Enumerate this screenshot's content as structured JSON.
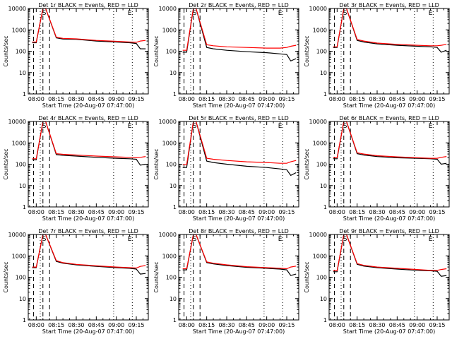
{
  "figure": {
    "xlabel": "Start Time (20-Aug-07 07:47:00)",
    "ylabel": "Counts/sec",
    "x_ticks": [
      "08:00",
      "08:15",
      "08:30",
      "08:45",
      "09:00",
      "09:15"
    ],
    "y_ticks": [
      "1",
      "10",
      "100",
      "1000",
      "10000"
    ],
    "marker_S": "S",
    "marker_E": "E"
  },
  "chart_data": [
    {
      "type": "line",
      "title": "Det 1r BLACK = Events, RED = LLD",
      "y_scale": "log",
      "ylim": [
        1,
        10000
      ],
      "x": [
        "07:57",
        "08:00",
        "08:05",
        "08:07",
        "08:15",
        "08:20",
        "08:30",
        "08:45",
        "09:00",
        "09:10",
        "09:15",
        "09:18",
        "09:22"
      ],
      "series": [
        {
          "name": "Events",
          "color": "#000000",
          "values": [
            250,
            250,
            10000,
            10000,
            420,
            370,
            360,
            300,
            270,
            250,
            230,
            130,
            130
          ]
        },
        {
          "name": "LLD",
          "color": "#ff0000",
          "values": [
            270,
            270,
            10000,
            10000,
            450,
            400,
            380,
            320,
            290,
            270,
            260,
            300,
            320
          ]
        }
      ]
    },
    {
      "type": "line",
      "title": "Det 2r BLACK = Events, RED = LLD",
      "y_scale": "log",
      "ylim": [
        1,
        10000
      ],
      "x": [
        "07:57",
        "08:00",
        "08:05",
        "08:07",
        "08:15",
        "08:20",
        "08:30",
        "08:45",
        "09:00",
        "09:10",
        "09:15",
        "09:18",
        "09:22"
      ],
      "series": [
        {
          "name": "Events",
          "color": "#000000",
          "values": [
            90,
            90,
            10000,
            10000,
            150,
            130,
            110,
            95,
            85,
            75,
            70,
            35,
            45
          ]
        },
        {
          "name": "LLD",
          "color": "#ff0000",
          "values": [
            110,
            110,
            10000,
            10000,
            200,
            180,
            160,
            150,
            140,
            140,
            150,
            170,
            190
          ]
        }
      ]
    },
    {
      "type": "line",
      "title": "Det 3r BLACK = Events, RED = LLD",
      "y_scale": "log",
      "ylim": [
        1,
        10000
      ],
      "x": [
        "07:57",
        "08:00",
        "08:05",
        "08:07",
        "08:15",
        "08:20",
        "08:30",
        "08:45",
        "09:00",
        "09:10",
        "09:15",
        "09:18",
        "09:22"
      ],
      "series": [
        {
          "name": "Events",
          "color": "#000000",
          "values": [
            150,
            150,
            10000,
            10000,
            320,
            270,
            220,
            190,
            170,
            160,
            150,
            90,
            110
          ]
        },
        {
          "name": "LLD",
          "color": "#ff0000",
          "values": [
            160,
            160,
            10000,
            10000,
            350,
            300,
            240,
            210,
            190,
            180,
            180,
            190,
            210
          ]
        }
      ]
    },
    {
      "type": "line",
      "title": "Det 4r BLACK = Events, RED = LLD",
      "y_scale": "log",
      "ylim": [
        1,
        10000
      ],
      "x": [
        "07:57",
        "08:00",
        "08:05",
        "08:07",
        "08:15",
        "08:20",
        "08:30",
        "08:45",
        "09:00",
        "09:10",
        "09:15",
        "09:18",
        "09:22"
      ],
      "series": [
        {
          "name": "Events",
          "color": "#000000",
          "values": [
            160,
            160,
            10000,
            10000,
            280,
            260,
            240,
            210,
            190,
            180,
            170,
            90,
            100
          ]
        },
        {
          "name": "LLD",
          "color": "#ff0000",
          "values": [
            180,
            180,
            10000,
            10000,
            310,
            290,
            270,
            240,
            220,
            210,
            200,
            210,
            230
          ]
        }
      ]
    },
    {
      "type": "line",
      "title": "Det 5r BLACK = Events, RED = LLD",
      "y_scale": "log",
      "ylim": [
        1,
        10000
      ],
      "x": [
        "07:57",
        "08:00",
        "08:05",
        "08:07",
        "08:15",
        "08:20",
        "08:30",
        "08:45",
        "09:00",
        "09:10",
        "09:15",
        "09:18",
        "09:22"
      ],
      "series": [
        {
          "name": "Events",
          "color": "#000000",
          "values": [
            70,
            70,
            10000,
            10000,
            140,
            120,
            100,
            80,
            70,
            60,
            55,
            30,
            40
          ]
        },
        {
          "name": "LLD",
          "color": "#ff0000",
          "values": [
            95,
            95,
            10000,
            10000,
            190,
            170,
            150,
            130,
            120,
            110,
            110,
            130,
            150
          ]
        }
      ]
    },
    {
      "type": "line",
      "title": "Det 6r BLACK = Events, RED = LLD",
      "y_scale": "log",
      "ylim": [
        1,
        10000
      ],
      "x": [
        "07:57",
        "08:00",
        "08:05",
        "08:07",
        "08:15",
        "08:20",
        "08:30",
        "08:45",
        "09:00",
        "09:10",
        "09:15",
        "09:18",
        "09:22"
      ],
      "series": [
        {
          "name": "Events",
          "color": "#000000",
          "values": [
            180,
            180,
            10000,
            10000,
            310,
            270,
            230,
            200,
            190,
            180,
            170,
            100,
            110
          ]
        },
        {
          "name": "LLD",
          "color": "#ff0000",
          "values": [
            200,
            200,
            10000,
            10000,
            340,
            300,
            250,
            220,
            200,
            190,
            190,
            210,
            230
          ]
        }
      ]
    },
    {
      "type": "line",
      "title": "Det 7r BLACK = Events, RED = LLD",
      "y_scale": "log",
      "ylim": [
        1,
        10000
      ],
      "x": [
        "07:57",
        "08:00",
        "08:05",
        "08:07",
        "08:15",
        "08:20",
        "08:30",
        "08:45",
        "09:00",
        "09:10",
        "09:15",
        "09:18",
        "09:22"
      ],
      "series": [
        {
          "name": "Events",
          "color": "#000000",
          "values": [
            280,
            280,
            10000,
            10000,
            550,
            450,
            380,
            320,
            280,
            260,
            240,
            140,
            150
          ]
        },
        {
          "name": "LLD",
          "color": "#ff0000",
          "values": [
            300,
            300,
            10000,
            10000,
            600,
            480,
            400,
            340,
            300,
            280,
            270,
            320,
            350
          ]
        }
      ]
    },
    {
      "type": "line",
      "title": "Det 8r BLACK = Events, RED = LLD",
      "y_scale": "log",
      "ylim": [
        1,
        10000
      ],
      "x": [
        "07:57",
        "08:00",
        "08:05",
        "08:07",
        "08:15",
        "08:20",
        "08:30",
        "08:45",
        "09:00",
        "09:10",
        "09:15",
        "09:18",
        "09:22"
      ],
      "series": [
        {
          "name": "Events",
          "color": "#000000",
          "values": [
            220,
            220,
            10000,
            10000,
            480,
            420,
            350,
            290,
            260,
            240,
            220,
            120,
            140
          ]
        },
        {
          "name": "LLD",
          "color": "#ff0000",
          "values": [
            250,
            250,
            10000,
            10000,
            520,
            450,
            380,
            310,
            280,
            260,
            250,
            300,
            330
          ]
        }
      ]
    },
    {
      "type": "line",
      "title": "Det 9r BLACK = Events, RED = LLD",
      "y_scale": "log",
      "ylim": [
        1,
        10000
      ],
      "x": [
        "07:57",
        "08:00",
        "08:05",
        "08:07",
        "08:15",
        "08:20",
        "08:30",
        "08:45",
        "09:00",
        "09:10",
        "09:15",
        "09:18",
        "09:22"
      ],
      "series": [
        {
          "name": "Events",
          "color": "#000000",
          "values": [
            180,
            180,
            10000,
            10000,
            400,
            330,
            280,
            240,
            210,
            200,
            190,
            110,
            120
          ]
        },
        {
          "name": "LLD",
          "color": "#ff0000",
          "values": [
            200,
            200,
            10000,
            10000,
            430,
            360,
            300,
            260,
            230,
            210,
            210,
            230,
            250
          ]
        }
      ]
    }
  ]
}
